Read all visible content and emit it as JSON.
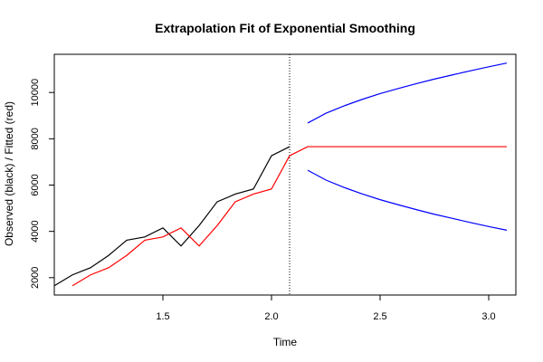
{
  "chart_data": {
    "type": "line",
    "title": "Extrapolation Fit of Exponential Smoothing",
    "xlabel": "Time",
    "ylabel": "Observed (black) / Fitted (red)",
    "xlim": [
      1.0,
      3.125
    ],
    "ylim": [
      1250,
      11650
    ],
    "x_ticks": [
      1.5,
      2.0,
      2.5,
      3.0
    ],
    "x_tick_labels": [
      "1.5",
      "2.0",
      "2.5",
      "3.0"
    ],
    "y_ticks": [
      2000,
      4000,
      6000,
      8000,
      10000
    ],
    "y_tick_labels": [
      "2000",
      "4000",
      "6000",
      "8000",
      "10000"
    ],
    "forecast_start_marker": 2.0833,
    "grid": false,
    "colors": {
      "observed": "#000000",
      "fitted": "#ff0000",
      "bounds": "#0000ff",
      "marker": "#000000"
    },
    "series": [
      {
        "id": "observed",
        "x": [
          1.0,
          1.0833,
          1.1667,
          1.25,
          1.3333,
          1.4167,
          1.5,
          1.5833,
          1.6667,
          1.75,
          1.8333,
          1.9167,
          2.0,
          2.0833
        ],
        "values": [
          1650,
          2120,
          2430,
          2960,
          3620,
          3760,
          4150,
          3370,
          4250,
          5280,
          5610,
          5830,
          7270,
          7660
        ]
      },
      {
        "id": "fitted",
        "x": [
          1.0833,
          1.1667,
          1.25,
          1.3333,
          1.4167,
          1.5,
          1.5833,
          1.6667,
          1.75,
          1.8333,
          1.9167,
          2.0,
          2.0833
        ],
        "values": [
          1650,
          2120,
          2430,
          2960,
          3620,
          3760,
          4150,
          3370,
          4250,
          5280,
          5610,
          5830,
          7270
        ]
      },
      {
        "id": "forecast",
        "x": [
          2.0833,
          2.1667,
          2.25,
          2.3333,
          2.4167,
          2.5,
          2.5833,
          2.6667,
          2.75,
          2.8333,
          2.9167,
          3.0,
          3.0833
        ],
        "values": [
          7270,
          7660,
          7660,
          7660,
          7660,
          7660,
          7660,
          7660,
          7660,
          7660,
          7660,
          7660,
          7660
        ]
      },
      {
        "id": "upper",
        "x": [
          2.1667,
          2.25,
          2.3333,
          2.4167,
          2.5,
          2.5833,
          2.6667,
          2.75,
          2.8333,
          2.9167,
          3.0,
          3.0833
        ],
        "values": [
          8680,
          9100,
          9420,
          9700,
          9950,
          10170,
          10380,
          10580,
          10760,
          10940,
          11110,
          11270
        ]
      },
      {
        "id": "lower",
        "x": [
          2.1667,
          2.25,
          2.3333,
          2.4167,
          2.5,
          2.5833,
          2.6667,
          2.75,
          2.8333,
          2.9167,
          3.0,
          3.0833
        ],
        "values": [
          6640,
          6220,
          5900,
          5620,
          5370,
          5150,
          4940,
          4740,
          4560,
          4380,
          4210,
          4050
        ]
      }
    ]
  }
}
